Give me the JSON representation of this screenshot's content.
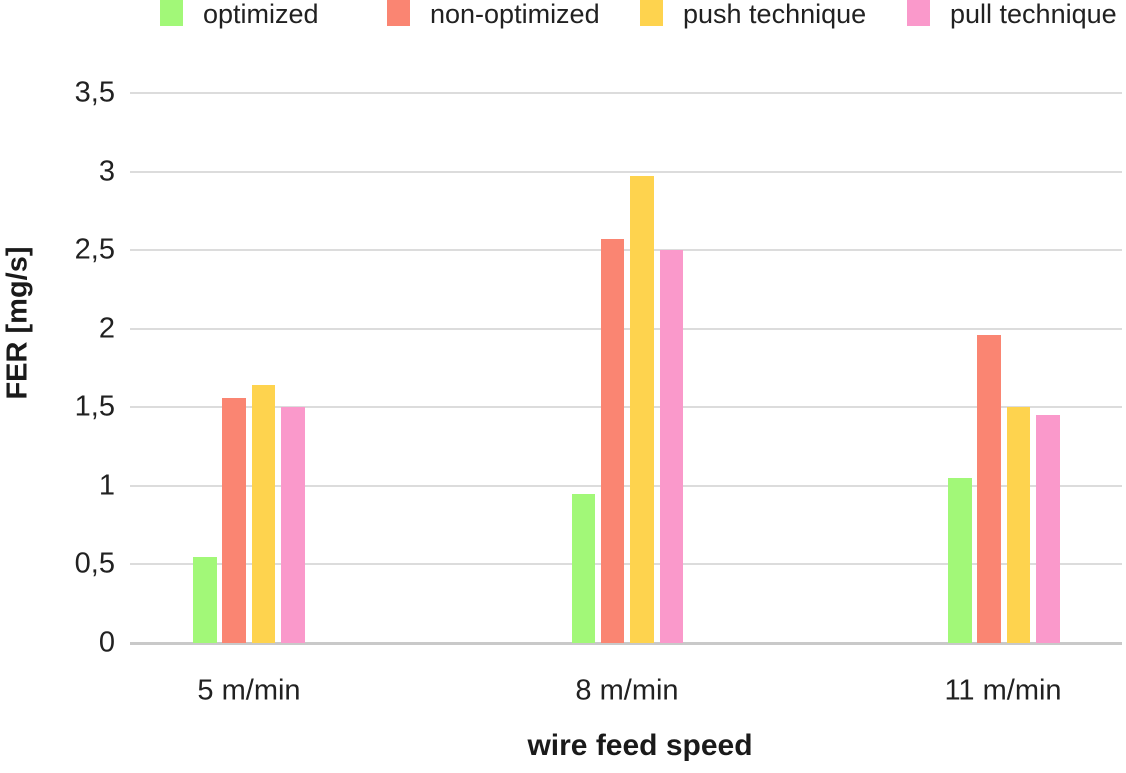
{
  "chart_data": {
    "type": "bar",
    "title": "",
    "xlabel": "wire feed speed",
    "ylabel": "FER [mg/s]",
    "categories": [
      "5 m/min",
      "8 m/min",
      "11 m/min"
    ],
    "series": [
      {
        "name": "optimized",
        "color": "#a2f878",
        "values": [
          0.55,
          0.95,
          1.05
        ]
      },
      {
        "name": "non-optimized",
        "color": "#fa8572",
        "values": [
          1.56,
          2.57,
          1.96
        ]
      },
      {
        "name": "push technique",
        "color": "#fed34e",
        "values": [
          1.64,
          2.97,
          1.5
        ]
      },
      {
        "name": "pull technique",
        "color": "#fa99cb",
        "values": [
          1.5,
          2.5,
          1.45
        ]
      }
    ],
    "y_ticks": [
      {
        "value": 0,
        "label": "0"
      },
      {
        "value": 0.5,
        "label": "0,5"
      },
      {
        "value": 1,
        "label": "1"
      },
      {
        "value": 1.5,
        "label": "1,5"
      },
      {
        "value": 2,
        "label": "2"
      },
      {
        "value": 2.5,
        "label": "2,5"
      },
      {
        "value": 3,
        "label": "3"
      },
      {
        "value": 3.5,
        "label": "3,5"
      }
    ],
    "ylim": [
      0,
      3.5
    ],
    "decimal_separator": ",",
    "grid": "horizontal",
    "legend_position": "top",
    "colors": {
      "gridline": "#dcdcdc",
      "zero_line": "#c9c9c9",
      "text": "#212121",
      "background": "#ffffff"
    }
  }
}
